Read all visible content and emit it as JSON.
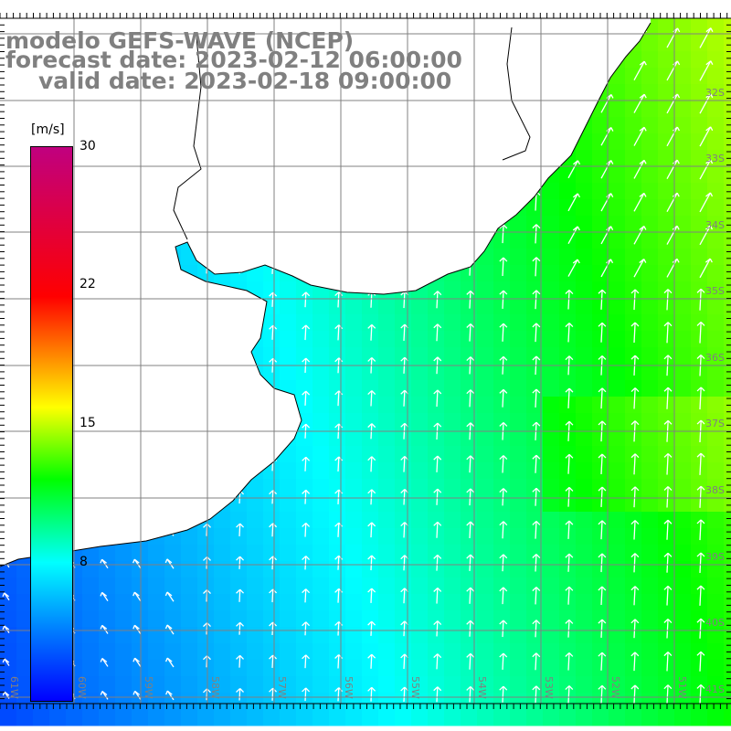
{
  "title": {
    "model": "modelo GEFS-WAVE (NCEP)",
    "forecast": "forecast date: 2023-02-12 06:00:00",
    "valid": "valid date: 2023-02-18 09:00:00"
  },
  "colorbar": {
    "unit": "[m/s]",
    "labels": [
      "30",
      "22",
      "15",
      "8"
    ],
    "range": [
      0,
      30
    ],
    "colors": {
      "0": "#0000ff",
      "7.5": "#00ffff",
      "12": "#00ff00",
      "16": "#ffff00",
      "22": "#ff0000",
      "30": "#c0007f"
    }
  },
  "lon_labels": [
    "61W",
    "60W",
    "59W",
    "58W",
    "57W",
    "56W",
    "55W",
    "54W",
    "53W",
    "52W",
    "51W"
  ],
  "lat_labels": [
    "32S",
    "33S",
    "34S",
    "35S",
    "36S",
    "37S",
    "38S",
    "39S",
    "40S",
    "41S"
  ]
}
